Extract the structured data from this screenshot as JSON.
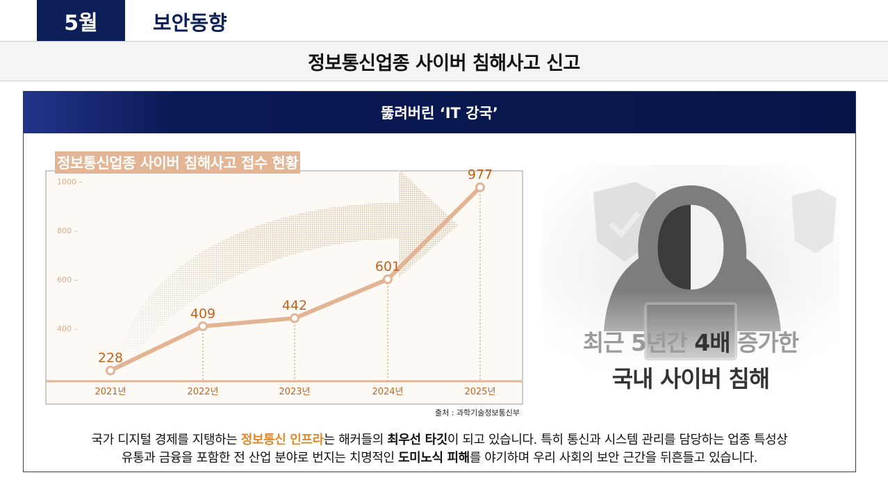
{
  "header": {
    "month_badge": "5월",
    "section_title": "보안동향"
  },
  "title": "정보통신업종 사이버 침해사고 신고",
  "card": {
    "header_title": "뚫려버린 ‘IT 강국’",
    "chart_title": "정보통신업종 사이버 침해사고 접수 현황",
    "source": "출처 : 과학기술정보통신부"
  },
  "chart_data": {
    "type": "line",
    "title": "정보통신업종 사이버 침해사고 접수 현황",
    "categories": [
      "2021년",
      "2022년",
      "2023년",
      "2024년",
      "2025년"
    ],
    "values": [
      228,
      409,
      442,
      601,
      977
    ],
    "value_labels": [
      "228",
      "409",
      "442",
      "601",
      "977"
    ],
    "y_ticks": [
      "400 –",
      "600 –",
      "800 –",
      "1000 –"
    ],
    "y_tick_values": [
      400,
      600,
      800,
      1000
    ],
    "ylim": [
      170,
      1050
    ],
    "line_color": "#e2b493",
    "label_color": "#c4631c",
    "grid": false
  },
  "visual": {
    "line1_a": "최근 5년간 ",
    "line1_b": "4배",
    "line1_c": " 증가한",
    "line2": "국내 사이버 침해",
    "icon": "hooded-hacker-icon"
  },
  "body": {
    "l1_a": "국가 디지털 경제를 지탱하는 ",
    "l1_hl": "정보통신 인프라",
    "l1_b": "는  해커들의 ",
    "l1_em": "최우선 타깃",
    "l1_c": "이 되고 있습니다. 특히 통신과 시스템 관리를 담당하는 업종 특성상",
    "l2_a": "유통과 금융을 포함한 전 산업 분야로 번지는 치명적인 ",
    "l2_em": "도미노식 피해",
    "l2_b": "를 야기하며 우리 사회의 보안 근간을 뒤흔들고 있습니다."
  }
}
